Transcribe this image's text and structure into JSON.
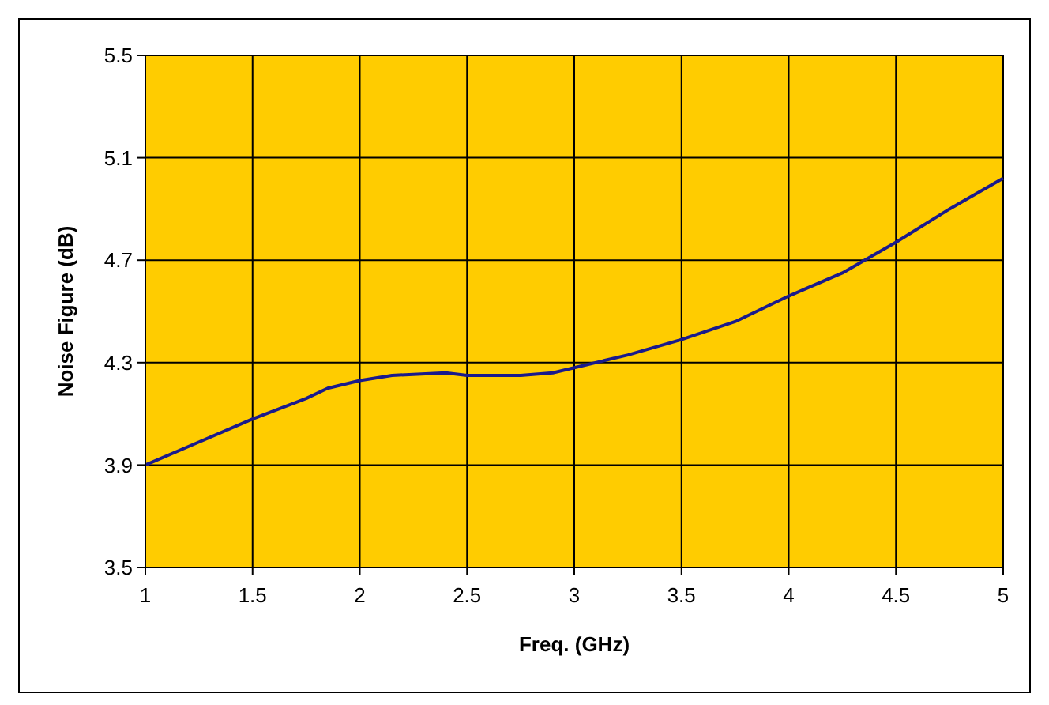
{
  "chart_data": {
    "type": "line",
    "xlabel": "Freq. (GHz)",
    "ylabel": "Noise Figure (dB)",
    "x": [
      1,
      1.25,
      1.5,
      1.75,
      1.85,
      2,
      2.15,
      2.4,
      2.5,
      2.75,
      2.9,
      3,
      3.25,
      3.5,
      3.75,
      4,
      4.25,
      4.5,
      4.75,
      5
    ],
    "series": [
      {
        "color": "#1a1a8c",
        "values": [
          3.9,
          3.99,
          4.08,
          4.16,
          4.2,
          4.23,
          4.25,
          4.26,
          4.25,
          4.25,
          4.26,
          4.28,
          4.33,
          4.39,
          4.46,
          4.56,
          4.65,
          4.77,
          4.9,
          5.02
        ]
      }
    ],
    "xlim": [
      1,
      5
    ],
    "xticks": [
      1,
      1.5,
      2,
      2.5,
      3,
      3.5,
      4,
      4.5,
      5
    ],
    "ylim": [
      3.5,
      5.5
    ],
    "yticks": [
      3.5,
      3.9,
      4.3,
      4.7,
      5.1,
      5.5
    ],
    "grid": true,
    "marker": "none",
    "line_style": "solid"
  }
}
